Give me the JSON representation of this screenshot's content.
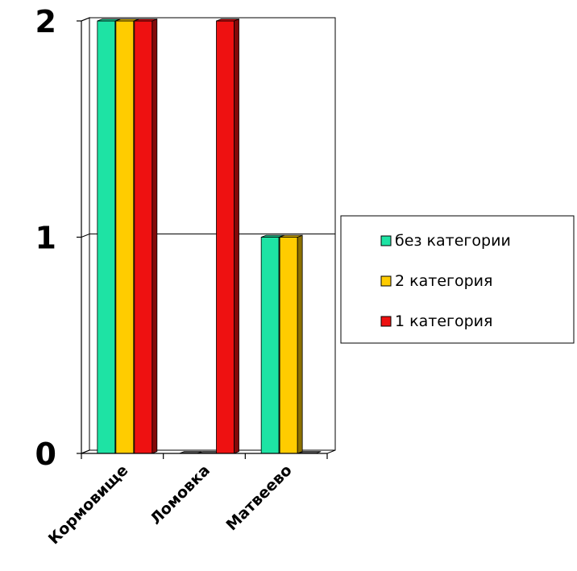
{
  "chart_data": {
    "type": "bar",
    "categories": [
      "Кормовище",
      "Ломовка",
      "Матвеево"
    ],
    "series": [
      {
        "name": "без категории",
        "values": [
          2,
          0,
          1
        ],
        "color": "#1ee3a4"
      },
      {
        "name": "2 категория",
        "values": [
          2,
          0,
          1
        ],
        "color": "#ffcc00"
      },
      {
        "name": "1 категория",
        "values": [
          2,
          2,
          0
        ],
        "color": "#ee1111"
      }
    ],
    "title": "",
    "xlabel": "",
    "ylabel": "",
    "ylim": [
      0,
      2
    ],
    "yticks": [
      "0",
      "1",
      "2"
    ],
    "grid": true,
    "legend": "right",
    "style": "3d-bar"
  }
}
